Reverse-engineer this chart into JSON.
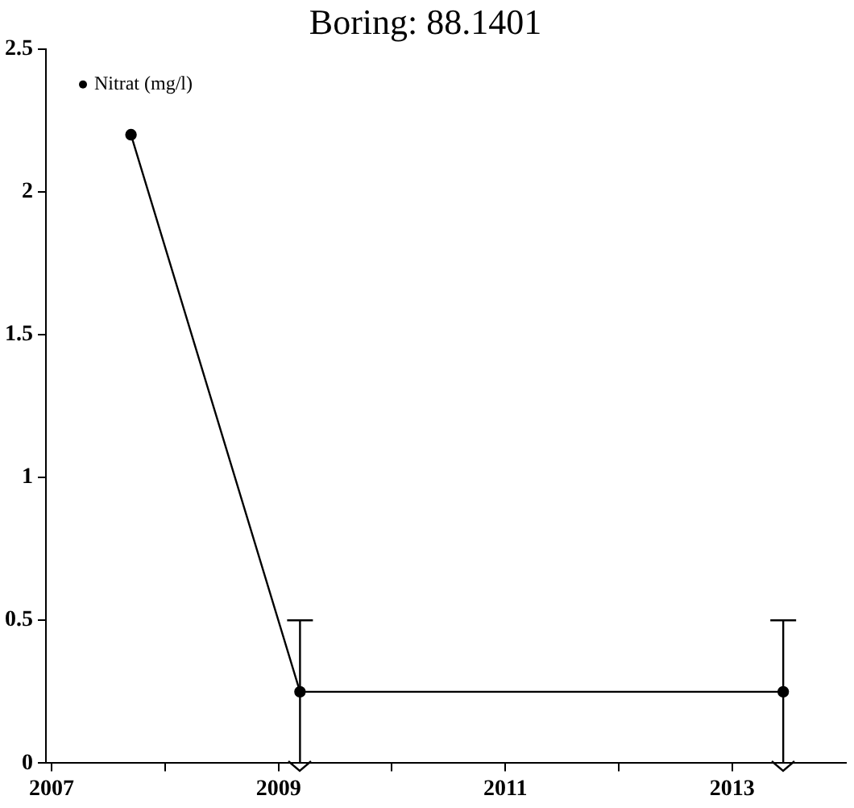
{
  "chart_data": {
    "type": "line",
    "title": "Boring: 88.1401",
    "x": [
      2007.7,
      2009.19,
      2013.45
    ],
    "series": [
      {
        "name": "Nitrat (mg/l)",
        "color": "#000000",
        "values": [
          2.2,
          0.25,
          0.25
        ],
        "errors": [
          null,
          0.25,
          0.25
        ]
      }
    ],
    "xlim": [
      2006.95,
      2014
    ],
    "xticks": [
      2007,
      {
        "value": 2008,
        "label": null
      },
      2009,
      {
        "value": 2010,
        "label": null
      },
      2011,
      {
        "value": 2012,
        "label": null
      },
      2013
    ],
    "ylim": [
      0,
      2.5
    ],
    "yticks": [
      0,
      0.5,
      1,
      1.5,
      2,
      2.5
    ],
    "grid": false,
    "legend": "top left",
    "marker": "circle",
    "line_style": "solid"
  }
}
